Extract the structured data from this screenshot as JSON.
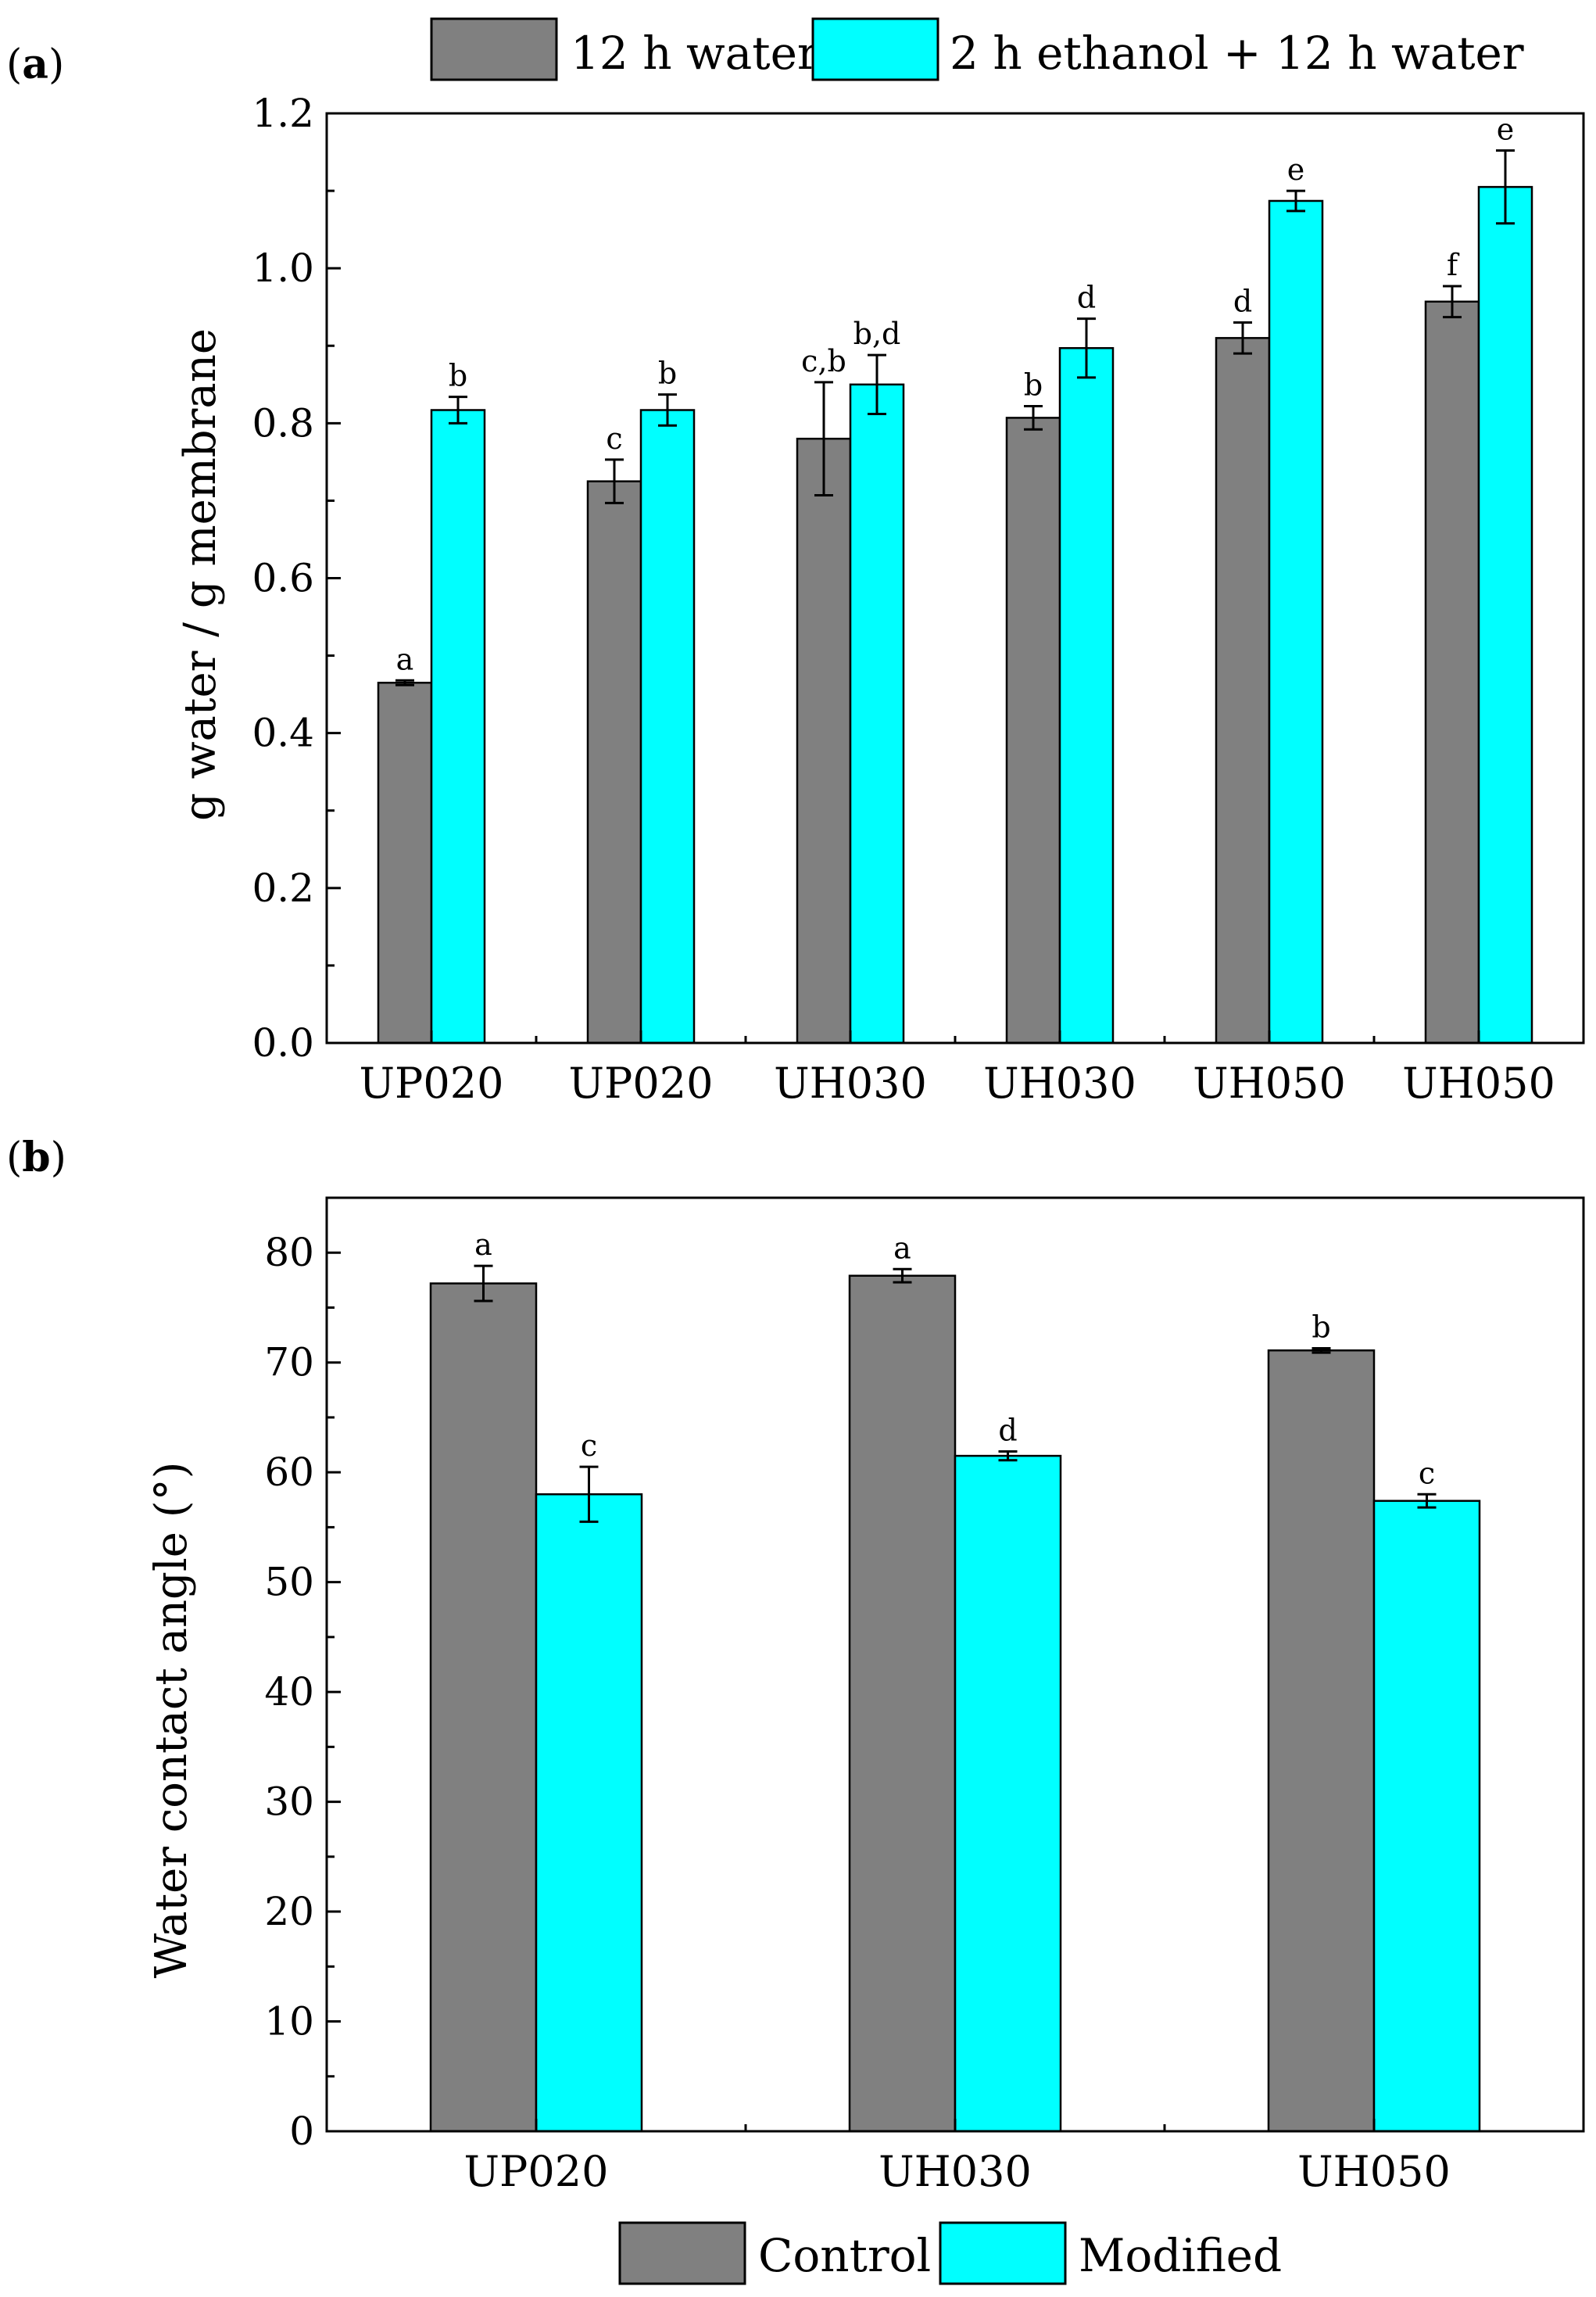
{
  "chart_data": [
    {
      "type": "bar",
      "panel": "(a)",
      "panel_letter": "a",
      "categories": [
        "UP020",
        "UP020",
        "UH030",
        "UH030",
        "UH050",
        "UH050"
      ],
      "ylabel": "g water / g membrane",
      "ylim": [
        0,
        1.2
      ],
      "yticks": [
        "0.0",
        "0.2",
        "0.4",
        "0.6",
        "0.8",
        "1.0",
        "1.2"
      ],
      "legend_position": "top",
      "colors": [
        "#808080",
        "#00ffff"
      ],
      "series": [
        {
          "name": "12 h water",
          "values": [
            0.465,
            0.725,
            0.78,
            0.807,
            0.91,
            0.957
          ],
          "errors": [
            0.003,
            0.028,
            0.073,
            0.015,
            0.02,
            0.02
          ],
          "labels": [
            "a",
            "c",
            "c,b",
            "b",
            "d",
            "f"
          ]
        },
        {
          "name": "2 h ethanol + 12 h water",
          "values": [
            0.817,
            0.817,
            0.85,
            0.897,
            1.087,
            1.105
          ],
          "errors": [
            0.017,
            0.02,
            0.038,
            0.038,
            0.013,
            0.047
          ],
          "labels": [
            "b",
            "b",
            "b,d",
            "d",
            "e",
            "e"
          ]
        }
      ]
    },
    {
      "type": "bar",
      "panel": "(b)",
      "panel_letter": "b",
      "categories": [
        "UP020",
        "UH030",
        "UH050"
      ],
      "ylabel": "Water contact angle (°)",
      "ylim": [
        0,
        85
      ],
      "yticks": [
        "0",
        "10",
        "20",
        "30",
        "40",
        "50",
        "60",
        "70",
        "80"
      ],
      "legend_position": "bottom",
      "colors": [
        "#808080",
        "#00ffff"
      ],
      "series": [
        {
          "name": "Control",
          "values": [
            77.2,
            77.9,
            71.1
          ],
          "errors": [
            1.6,
            0.6,
            0.2
          ],
          "labels": [
            "a",
            "a",
            "b"
          ]
        },
        {
          "name": "Modified",
          "values": [
            58.0,
            61.5,
            57.4
          ],
          "errors": [
            2.5,
            0.4,
            0.6
          ],
          "labels": [
            "c",
            "d",
            "c"
          ]
        }
      ]
    }
  ]
}
